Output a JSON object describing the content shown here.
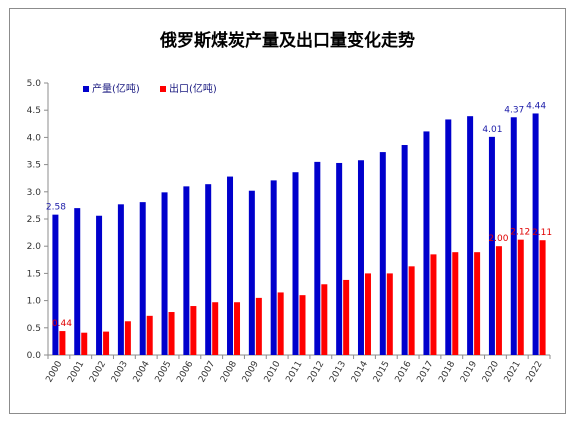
{
  "chart_data": {
    "type": "bar",
    "title": "俄罗斯煤炭产量及出口量变化走势",
    "xlabel": "",
    "ylabel": "",
    "ylim": [
      0,
      5.0
    ],
    "yticks": [
      "0.0",
      "0.5",
      "1.0",
      "1.5",
      "2.0",
      "2.5",
      "3.0",
      "3.5",
      "4.0",
      "4.5",
      "5.0"
    ],
    "grid": false,
    "legend_position": "top-left",
    "categories": [
      "2000",
      "2001",
      "2002",
      "2003",
      "2004",
      "2005",
      "2006",
      "2007",
      "2008",
      "2009",
      "2010",
      "2011",
      "2012",
      "2013",
      "2014",
      "2015",
      "2016",
      "2017",
      "2018",
      "2019",
      "2020",
      "2021",
      "2022"
    ],
    "series": [
      {
        "name": "产量(亿吨)",
        "color": "#0000cc",
        "values": [
          2.58,
          2.7,
          2.56,
          2.77,
          2.81,
          2.99,
          3.1,
          3.14,
          3.28,
          3.02,
          3.21,
          3.36,
          3.55,
          3.53,
          3.58,
          3.73,
          3.86,
          4.11,
          4.33,
          4.39,
          4.01,
          4.37,
          4.44
        ],
        "labels": {
          "0": "2.58",
          "20": "4.01",
          "21": "4.37",
          "22": "4.44"
        }
      },
      {
        "name": "出口(亿吨)",
        "color": "#ff0000",
        "values": [
          0.44,
          0.41,
          0.43,
          0.62,
          0.72,
          0.79,
          0.9,
          0.97,
          0.97,
          1.05,
          1.15,
          1.1,
          1.3,
          1.38,
          1.5,
          1.5,
          1.63,
          1.85,
          1.89,
          1.89,
          2.0,
          2.12,
          2.11
        ],
        "labels": {
          "0": "0.44",
          "20": "2.00",
          "21": "2.12",
          "22": "2.11"
        }
      }
    ]
  }
}
